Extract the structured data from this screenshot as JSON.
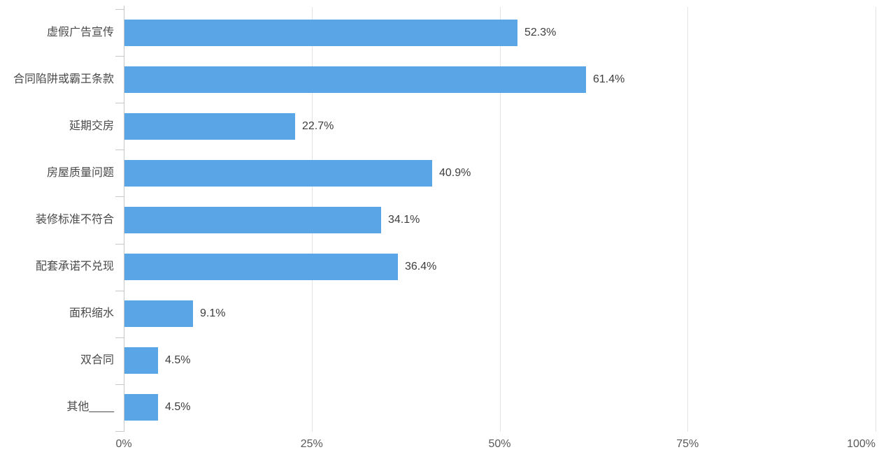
{
  "chart_data": {
    "type": "bar",
    "orientation": "horizontal",
    "title": "",
    "xlabel": "",
    "ylabel": "",
    "categories": [
      "虚假广告宣传",
      "合同陷阱或霸王条款",
      "延期交房",
      "房屋质量问题",
      "装修标准不符合",
      "配套承诺不兑现",
      "面积缩水",
      "双合同",
      "其他____"
    ],
    "values": [
      52.3,
      61.4,
      22.7,
      40.9,
      34.1,
      36.4,
      9.1,
      4.5,
      4.5
    ],
    "value_labels": [
      "52.3%",
      "61.4%",
      "22.7%",
      "40.9%",
      "34.1%",
      "36.4%",
      "9.1%",
      "4.5%",
      "4.5%"
    ],
    "xlim": [
      0,
      100
    ],
    "x_tick_values": [
      0,
      25,
      50,
      75,
      100
    ],
    "x_tick_labels": [
      "0%",
      "25%",
      "50%",
      "75%",
      "100%"
    ],
    "grid": true,
    "legend": null,
    "colors": {
      "bar": "#5AA5E6",
      "gridline": "#E3E3E3",
      "axis_line": "#C8C8C8",
      "tick": "#C8C8C8",
      "category_label": "#4A4A4A",
      "value_label": "#3D3D3D",
      "axis_label": "#595959",
      "background": "#FFFFFF"
    }
  }
}
